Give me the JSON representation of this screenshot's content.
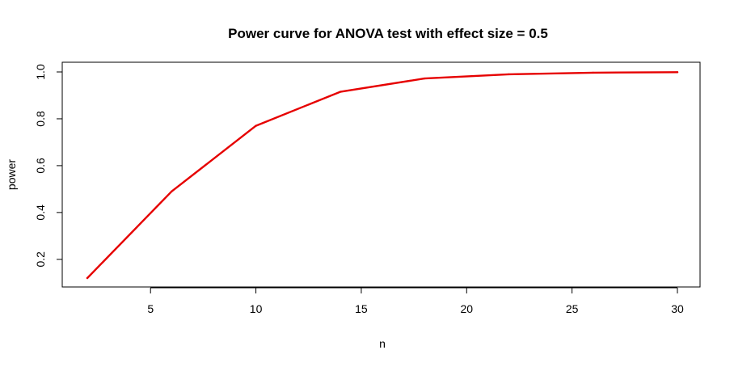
{
  "chart_data": {
    "type": "line",
    "title": "Power curve for ANOVA test with effect size =  0.5",
    "xlabel": "n",
    "ylabel": "power",
    "xlim": [
      2,
      30
    ],
    "ylim": [
      0.12,
      1.0
    ],
    "x_ticks": [
      5,
      10,
      15,
      20,
      25,
      30
    ],
    "y_ticks": [
      0.2,
      0.4,
      0.6,
      0.8,
      1.0
    ],
    "x_tick_labels": [
      "5",
      "10",
      "15",
      "20",
      "25",
      "30"
    ],
    "y_tick_labels": [
      "0.2",
      "0.4",
      "0.6",
      "0.8",
      "1.0"
    ],
    "grid": false,
    "legend": "none",
    "series": [
      {
        "color": "#e60000",
        "x": [
          2,
          6,
          10,
          14,
          18,
          22,
          26,
          30
        ],
        "y": [
          0.12,
          0.49,
          0.77,
          0.915,
          0.972,
          0.99,
          0.997,
          0.999
        ]
      }
    ]
  }
}
